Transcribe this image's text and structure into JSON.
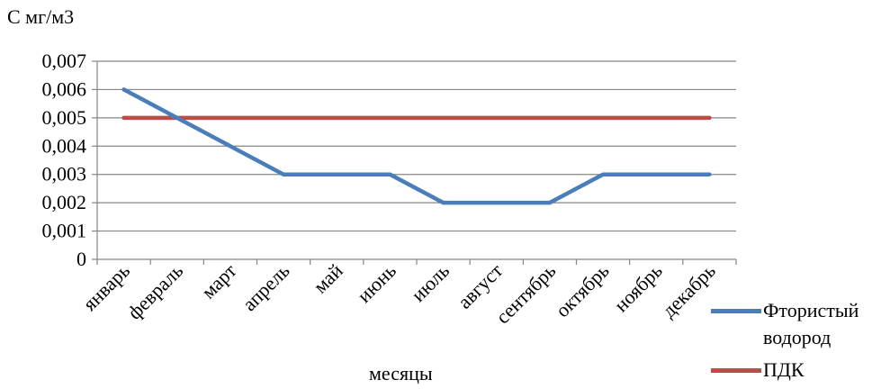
{
  "chart_data": {
    "type": "line",
    "ylabel": "С мг/м3",
    "xlabel": "месяцы",
    "categories": [
      "январь",
      "февраль",
      "март",
      "апрель",
      "май",
      "июнь",
      "июль",
      "август",
      "сентябрь",
      "октябрь",
      "ноябрь",
      "декабрь"
    ],
    "yticks": [
      "0",
      "0,001",
      "0,002",
      "0,003",
      "0,004",
      "0,005",
      "0,006",
      "0,007"
    ],
    "ylim": [
      0,
      0.007
    ],
    "grid": true,
    "legend_position": "right",
    "series": [
      {
        "name": "Фтористый водород",
        "color": "#4a7ebb",
        "values": [
          0.006,
          0.005,
          0.004,
          0.003,
          0.003,
          0.003,
          0.002,
          0.002,
          0.002,
          0.003,
          0.003,
          0.003
        ]
      },
      {
        "name": "ПДК",
        "color": "#be4b48",
        "values": [
          0.005,
          0.005,
          0.005,
          0.005,
          0.005,
          0.005,
          0.005,
          0.005,
          0.005,
          0.005,
          0.005,
          0.005
        ]
      }
    ]
  }
}
